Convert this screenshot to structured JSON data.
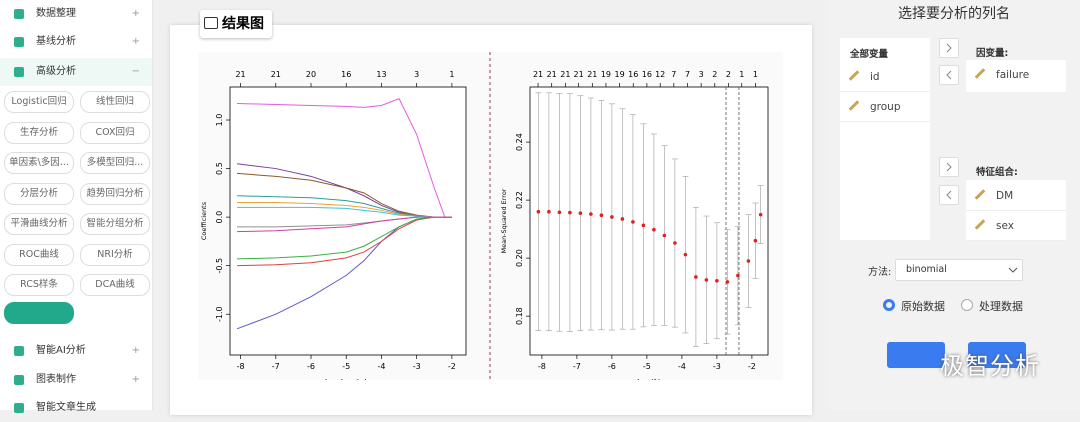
{
  "sidebar": {
    "items": [
      "数据整理",
      "基线分析",
      "高级分析"
    ],
    "buttons": [
      "Logistic回归",
      "线性回归",
      "生存分析",
      "COX回归",
      "单因素\\多因...",
      "多模型回归...",
      "分层分析",
      "趋势回归分析",
      "平滑曲线分析",
      "智能分组分析",
      "ROC曲线",
      "NRI分析",
      "RCS样条",
      "DCA曲线"
    ],
    "bottom_items": [
      "智能AI分析",
      "图表制作",
      "智能文章生成"
    ]
  },
  "panel": {
    "title": "结果图"
  },
  "chart_data": [
    {
      "type": "line",
      "xlabel": "Log Lambda",
      "ylabel": "Coefficients",
      "x": [
        -8.1,
        -7,
        -6,
        -5,
        -4.5,
        -4,
        -3.5,
        -3,
        -2.5,
        -2.2,
        -2
      ],
      "series": [
        {
          "color": "#e05ce0",
          "values": [
            1.17,
            1.16,
            1.15,
            1.14,
            1.13,
            1.15,
            1.22,
            0.85,
            0.3,
            0,
            0
          ]
        },
        {
          "color": "#5a5ad6",
          "values": [
            -1.15,
            -1.0,
            -0.82,
            -0.6,
            -0.45,
            -0.25,
            -0.1,
            -0.02,
            0,
            0,
            0
          ]
        },
        {
          "color": "#7a3fa0",
          "values": [
            0.55,
            0.5,
            0.42,
            0.3,
            0.22,
            0.12,
            0.05,
            0.01,
            0,
            0,
            0
          ]
        },
        {
          "color": "#8b5a2b",
          "values": [
            0.45,
            0.42,
            0.38,
            0.3,
            0.25,
            0.14,
            0.06,
            0.02,
            0,
            0,
            0
          ]
        },
        {
          "color": "#e04040",
          "values": [
            -0.5,
            -0.49,
            -0.47,
            -0.42,
            -0.36,
            -0.25,
            -0.12,
            -0.03,
            0,
            0,
            0
          ]
        },
        {
          "color": "#3cb043",
          "values": [
            -0.43,
            -0.42,
            -0.4,
            -0.36,
            -0.3,
            -0.2,
            -0.1,
            -0.02,
            0,
            0,
            0
          ]
        },
        {
          "color": "#2aa198",
          "values": [
            0.22,
            0.21,
            0.2,
            0.17,
            0.14,
            0.09,
            0.04,
            0.01,
            0,
            0,
            0
          ]
        },
        {
          "color": "#f0a030",
          "values": [
            0.15,
            0.15,
            0.14,
            0.12,
            0.1,
            0.07,
            0.03,
            0.01,
            0,
            0,
            0
          ]
        },
        {
          "color": "#40c0e0",
          "values": [
            0.1,
            0.1,
            0.1,
            0.09,
            0.07,
            0.05,
            0.02,
            0.01,
            0,
            0,
            0
          ]
        },
        {
          "color": "#909090",
          "values": [
            -0.1,
            -0.1,
            -0.09,
            -0.08,
            -0.06,
            -0.04,
            -0.02,
            0,
            0,
            0,
            0
          ]
        },
        {
          "color": "#d040a0",
          "values": [
            -0.15,
            -0.14,
            -0.12,
            -0.1,
            -0.07,
            -0.04,
            -0.02,
            0,
            0,
            0,
            0
          ]
        }
      ],
      "xlim": [
        -8.3,
        -1.6
      ],
      "ylim": [
        -1.42,
        1.34
      ],
      "xticks": [
        -8,
        -7,
        -6,
        -5,
        -4,
        -3,
        -2
      ],
      "yticks": [
        {
          "value": 1,
          "label": "1.0"
        },
        0.5,
        {
          "value": 0,
          "label": "0.0"
        },
        -0.5,
        {
          "value": -1,
          "label": "-1.0"
        }
      ],
      "top_ticks": [
        {
          "value": -8,
          "label": "21"
        },
        {
          "value": -7,
          "label": "21"
        },
        {
          "value": -6,
          "label": "20"
        },
        {
          "value": -5,
          "label": "16"
        },
        {
          "value": -4,
          "label": "13"
        },
        {
          "value": -3,
          "label": "3"
        },
        {
          "value": -2,
          "label": "1"
        }
      ]
    },
    {
      "type": "errorbar",
      "xlabel": "Log(λ)",
      "ylabel": "Mean-Squared Error",
      "color": "#e02020",
      "x": [
        -8.1,
        -7.8,
        -7.5,
        -7.2,
        -6.9,
        -6.6,
        -6.3,
        -6.0,
        -5.7,
        -5.4,
        -5.1,
        -4.8,
        -4.5,
        -4.2,
        -3.9,
        -3.6,
        -3.3,
        -3.0,
        -2.7,
        -2.4,
        -2.1,
        -1.9,
        -1.75
      ],
      "values": [
        0.216,
        0.216,
        0.2158,
        0.2157,
        0.2155,
        0.2152,
        0.2148,
        0.2142,
        0.2135,
        0.2125,
        0.2113,
        0.2098,
        0.2078,
        0.2052,
        0.2012,
        0.1935,
        0.1925,
        0.1922,
        0.1918,
        0.194,
        0.199,
        0.206,
        0.215
      ],
      "errors": [
        0.041,
        0.041,
        0.041,
        0.041,
        0.0405,
        0.04,
        0.0395,
        0.039,
        0.038,
        0.037,
        0.035,
        0.033,
        0.031,
        0.029,
        0.027,
        0.024,
        0.022,
        0.02,
        0.018,
        0.017,
        0.016,
        0.013,
        0.01
      ],
      "vlines": [
        -2.74,
        -2.37
      ],
      "xlim": [
        -8.34,
        -1.54
      ],
      "ylim": [
        0.1666,
        0.259
      ],
      "xticks": [
        -8,
        -7,
        -6,
        -5,
        -4,
        -3,
        -2
      ],
      "yticks": [
        0.24,
        0.22,
        {
          "value": 0.2,
          "label": "0.20"
        },
        0.18
      ],
      "top_ticks": [
        {
          "value": -8.11,
          "label": "21"
        },
        {
          "value": -7.72,
          "label": "21"
        },
        {
          "value": -7.33,
          "label": "21"
        },
        {
          "value": -6.95,
          "label": "21"
        },
        {
          "value": -6.56,
          "label": "21"
        },
        {
          "value": -6.17,
          "label": "19"
        },
        {
          "value": -5.78,
          "label": "19"
        },
        {
          "value": -5.39,
          "label": "16"
        },
        {
          "value": -5.0,
          "label": "16"
        },
        {
          "value": -4.62,
          "label": "12"
        },
        {
          "value": -4.23,
          "label": "7"
        },
        {
          "value": -3.84,
          "label": "7"
        },
        {
          "value": -3.45,
          "label": "3"
        },
        {
          "value": -3.06,
          "label": "2"
        },
        {
          "value": -2.67,
          "label": "2"
        },
        {
          "value": -2.29,
          "label": "1"
        },
        {
          "value": -1.9,
          "label": "1"
        }
      ]
    }
  ],
  "right": {
    "title": "选择要分析的列名",
    "all_vars": {
      "title": "全部变量",
      "items": [
        "id",
        "group"
      ]
    },
    "dependent": {
      "title": "因变量:",
      "items": [
        "failure"
      ]
    },
    "features": {
      "title": "特征组合:",
      "items": [
        "DM",
        "sex"
      ]
    },
    "method": {
      "label": "方法:",
      "value": "binomial"
    },
    "radios": [
      "原始数据",
      "处理数据"
    ]
  },
  "watermark": "极智分析"
}
